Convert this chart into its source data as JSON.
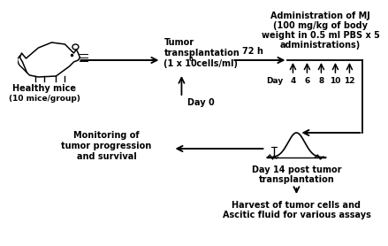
{
  "bg_color": "#ffffff",
  "text_color": "#000000",
  "texts": {
    "healthy_mice": "Healthy mice",
    "mice_group": "(10 mice/group)",
    "tumor_line1": "Tumor",
    "tumor_line2": "transplantation",
    "tumor_line3a": "(1 x 10",
    "tumor_sup": "6",
    "tumor_line3b": " cells/ml)",
    "day0": "Day 0",
    "h72": "72 h",
    "admin_line1": "Administration of MJ",
    "admin_line2": "(100 mg/kg of body",
    "admin_line3": "weight in 0.5 ml PBS x 5",
    "admin_line4": "administrations)",
    "day_label": "Day",
    "days": [
      "4",
      "6",
      "8",
      "10",
      "12"
    ],
    "monitoring_line1": "Monitoring of",
    "monitoring_line2": "tumor progression",
    "monitoring_line3": "and survival",
    "day14_line1": "Day 14 post tumor",
    "day14_line2": "transplantation",
    "harvest_line1": "Harvest of tumor cells and",
    "harvest_line2": "Ascitic fluid for various assays"
  },
  "fs": 6.5,
  "fs_bold": 7.0
}
